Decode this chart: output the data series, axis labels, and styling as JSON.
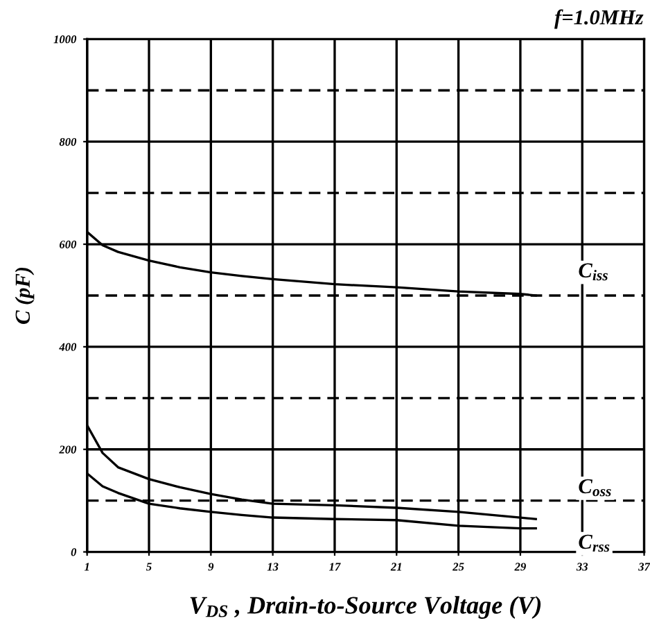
{
  "chart_data": {
    "type": "line",
    "xlabel": "V$_{DS}$ , Drain-to-Source Voltage (V)",
    "ylabel": "C (pF)",
    "annotations": [
      "f=1.0MHz"
    ],
    "series": [
      {
        "name": "C$_{iss}$",
        "color": "#000000",
        "x": [
          1,
          2,
          3,
          5,
          7,
          9,
          11,
          13,
          17,
          21,
          25,
          29,
          30
        ],
        "values": [
          624,
          598,
          585,
          568,
          555,
          545,
          538,
          532,
          522,
          516,
          508,
          503,
          500
        ]
      },
      {
        "name": "C$_{oss}$",
        "color": "#000000",
        "x": [
          1,
          2,
          3,
          5,
          7,
          9,
          11,
          13,
          17,
          21,
          25,
          29,
          30
        ],
        "values": [
          247,
          193,
          165,
          142,
          126,
          113,
          102,
          94,
          91,
          86,
          78,
          67,
          64
        ]
      },
      {
        "name": "C$_{rss}$",
        "color": "#000000",
        "x": [
          1,
          2,
          3,
          5,
          7,
          9,
          11,
          13,
          17,
          21,
          25,
          29,
          30
        ],
        "values": [
          153,
          128,
          115,
          94,
          85,
          78,
          72,
          67,
          64,
          62,
          51,
          46,
          46
        ]
      }
    ],
    "xlim": [
      1,
      37
    ],
    "xticks": [
      1,
      5,
      9,
      13,
      17,
      21,
      25,
      29,
      33,
      37
    ],
    "ylim": [
      0,
      1000
    ],
    "yticks": [
      0,
      200,
      400,
      600,
      800,
      1000
    ],
    "ref_lines": [
      {
        "axis": "y",
        "value": 100,
        "line_style": "dashed",
        "color": "#000000"
      },
      {
        "axis": "y",
        "value": 300,
        "line_style": "dashed",
        "color": "#000000"
      },
      {
        "axis": "y",
        "value": 500,
        "line_style": "dashed",
        "color": "#000000"
      },
      {
        "axis": "y",
        "value": 700,
        "line_style": "dashed",
        "color": "#000000"
      },
      {
        "axis": "y",
        "value": 900,
        "line_style": "dashed",
        "color": "#000000"
      }
    ],
    "grid": true,
    "legend": false,
    "marker": "none",
    "line_style": "solid"
  }
}
